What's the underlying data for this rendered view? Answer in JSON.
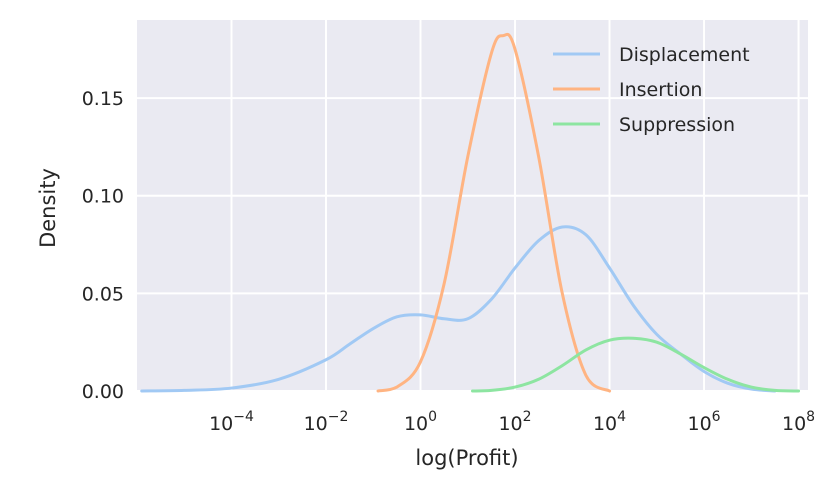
{
  "chart_data": {
    "type": "line",
    "title": "",
    "xlabel": "log(Profit)",
    "ylabel": "Density",
    "x_scale": "log10",
    "xlim_exponent": [
      -6.0,
      8.2
    ],
    "ylim": [
      0,
      0.19
    ],
    "x_ticks": [
      {
        "base": "10",
        "exp": "−4",
        "value": -4
      },
      {
        "base": "10",
        "exp": "−2",
        "value": -2
      },
      {
        "base": "10",
        "exp": "0",
        "value": 0
      },
      {
        "base": "10",
        "exp": "2",
        "value": 2
      },
      {
        "base": "10",
        "exp": "4",
        "value": 4
      },
      {
        "base": "10",
        "exp": "6",
        "value": 6
      },
      {
        "base": "10",
        "exp": "8",
        "value": 8
      }
    ],
    "y_ticks": [
      {
        "label": "0.00",
        "value": 0
      },
      {
        "label": "0.05",
        "value": 0.05
      },
      {
        "label": "0.10",
        "value": 0.1
      },
      {
        "label": "0.15",
        "value": 0.15
      }
    ],
    "grid": true,
    "legend_position": "top-right",
    "series": [
      {
        "name": "Displacement",
        "color": "#a1c9f4",
        "points": [
          [
            -5.9,
            0.0
          ],
          [
            -5,
            0.0003
          ],
          [
            -4,
            0.0015
          ],
          [
            -3,
            0.006
          ],
          [
            -2,
            0.016
          ],
          [
            -1.5,
            0.024
          ],
          [
            -1,
            0.032
          ],
          [
            -0.5,
            0.038
          ],
          [
            0,
            0.039
          ],
          [
            0.5,
            0.037
          ],
          [
            1,
            0.037
          ],
          [
            1.5,
            0.047
          ],
          [
            2,
            0.063
          ],
          [
            2.5,
            0.077
          ],
          [
            3,
            0.084
          ],
          [
            3.5,
            0.08
          ],
          [
            4,
            0.063
          ],
          [
            4.5,
            0.044
          ],
          [
            5,
            0.029
          ],
          [
            5.5,
            0.019
          ],
          [
            6,
            0.01
          ],
          [
            6.5,
            0.004
          ],
          [
            7,
            0.001
          ],
          [
            7.5,
            0.0
          ]
        ]
      },
      {
        "name": "Insertion",
        "color": "#ffb482",
        "points": [
          [
            -0.9,
            0.0
          ],
          [
            -0.5,
            0.002
          ],
          [
            0,
            0.015
          ],
          [
            0.5,
            0.055
          ],
          [
            1,
            0.12
          ],
          [
            1.5,
            0.173
          ],
          [
            1.75,
            0.182
          ],
          [
            2,
            0.175
          ],
          [
            2.5,
            0.12
          ],
          [
            3,
            0.05
          ],
          [
            3.5,
            0.008
          ],
          [
            4,
            0.0
          ]
        ]
      },
      {
        "name": "Suppression",
        "color": "#8de5a1",
        "points": [
          [
            1.1,
            0.0
          ],
          [
            1.5,
            0.0003
          ],
          [
            2,
            0.002
          ],
          [
            2.5,
            0.006
          ],
          [
            3,
            0.013
          ],
          [
            3.5,
            0.021
          ],
          [
            4,
            0.026
          ],
          [
            4.5,
            0.027
          ],
          [
            5,
            0.025
          ],
          [
            5.5,
            0.019
          ],
          [
            6,
            0.012
          ],
          [
            6.5,
            0.006
          ],
          [
            7,
            0.002
          ],
          [
            7.5,
            0.0003
          ],
          [
            8,
            0.0
          ]
        ]
      }
    ]
  }
}
